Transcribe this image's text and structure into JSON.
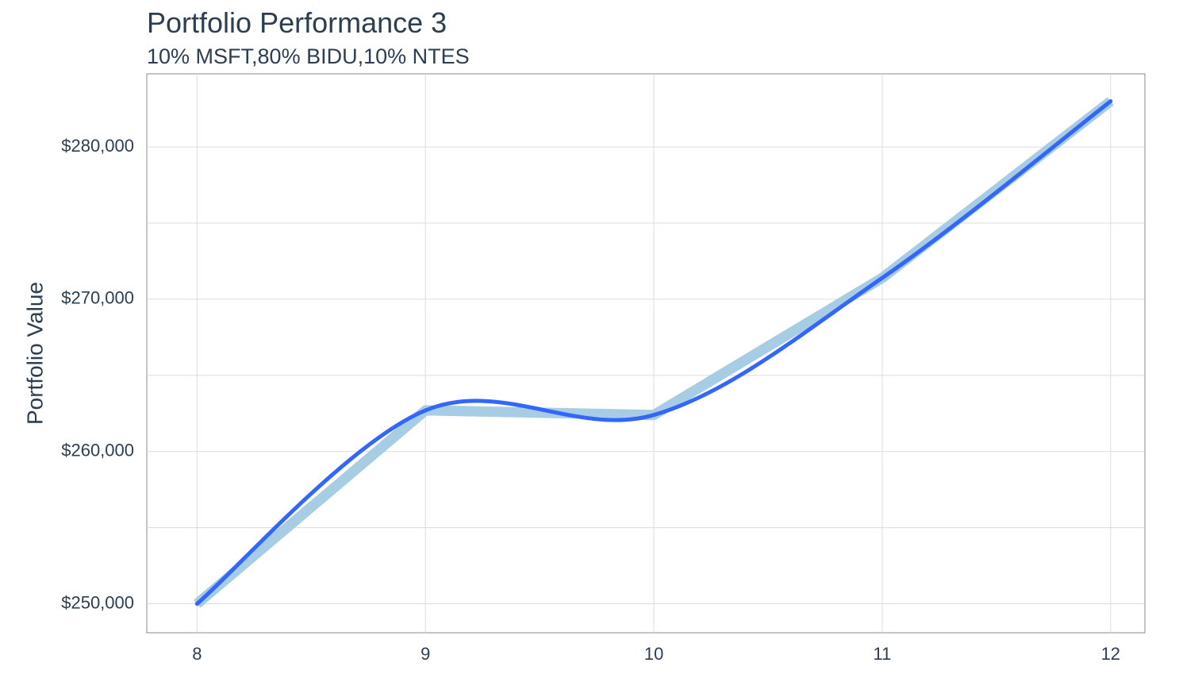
{
  "chart_data": {
    "type": "line",
    "title": "Portfolio Performance 3",
    "subtitle": "10% MSFT,80% BIDU,10% NTES",
    "xlabel": "",
    "ylabel": "Portfolio Value",
    "x": [
      8,
      9,
      10,
      11,
      12
    ],
    "x_ticks": [
      "8",
      "9",
      "10",
      "11",
      "12"
    ],
    "y_ticks": [
      "$250,000",
      "$260,000",
      "$270,000",
      "$280,000"
    ],
    "y_tick_values": [
      250000,
      260000,
      270000,
      280000
    ],
    "xlim": [
      7.78,
      12.15
    ],
    "ylim": [
      248100,
      284800
    ],
    "grid": true,
    "legend": "none",
    "series": [
      {
        "values": [
          250000,
          262700,
          262400,
          271400,
          283000
        ],
        "color": "#a6cde3",
        "style": "thick-straight"
      },
      {
        "values": [
          250000,
          262700,
          262400,
          271400,
          283000
        ],
        "color": "#3366ff",
        "style": "smooth"
      }
    ]
  }
}
